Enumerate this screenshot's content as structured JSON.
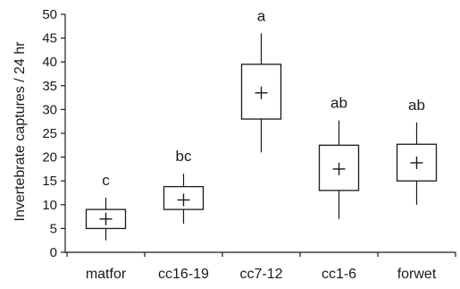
{
  "chart_data": {
    "type": "box",
    "ylabel": "Invertebrate captures / 24 hr",
    "xlabel": "",
    "ylim": [
      0,
      50
    ],
    "yticks": [
      0,
      5,
      10,
      15,
      20,
      25,
      30,
      35,
      40,
      45,
      50
    ],
    "grid": false,
    "legend": "none",
    "categories": [
      "matfor",
      "cc16-19",
      "cc7-12",
      "cc1-6",
      "forwet"
    ],
    "boxes": [
      {
        "category": "matfor",
        "whisker_low": 2.5,
        "q1": 5,
        "mean": 7,
        "q3": 9,
        "whisker_high": 11.5,
        "group_label": "c"
      },
      {
        "category": "cc16-19",
        "whisker_low": 6,
        "q1": 9,
        "mean": 11,
        "q3": 13.8,
        "whisker_high": 16.5,
        "group_label": "bc"
      },
      {
        "category": "cc7-12",
        "whisker_low": 21,
        "q1": 28,
        "mean": 33.5,
        "q3": 39.5,
        "whisker_high": 46,
        "group_label": "a"
      },
      {
        "category": "cc1-6",
        "whisker_low": 7,
        "q1": 13,
        "mean": 17.5,
        "q3": 22.5,
        "whisker_high": 27.7,
        "group_label": "ab"
      },
      {
        "category": "forwet",
        "whisker_low": 10,
        "q1": 15,
        "mean": 18.8,
        "q3": 22.7,
        "whisker_high": 27.3,
        "group_label": "ab"
      }
    ]
  }
}
